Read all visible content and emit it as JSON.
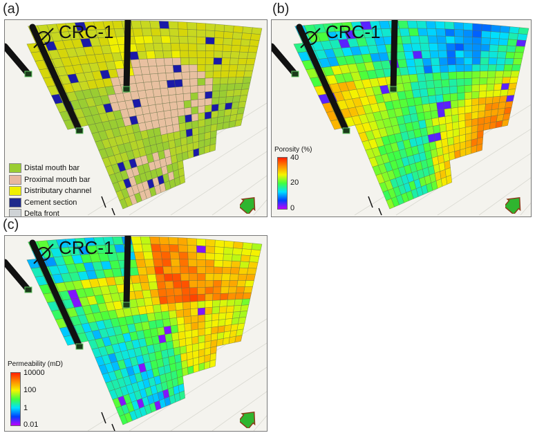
{
  "panels": [
    {
      "letter": "(a)",
      "well": "CRC-1",
      "property": "facies"
    },
    {
      "letter": "(b)",
      "well": "CRC-1",
      "property": "porosity"
    },
    {
      "letter": "(c)",
      "well": "CRC-1",
      "property": "permeability"
    }
  ],
  "facies_legend": [
    {
      "label": "Distal mouth bar",
      "color": "#9acd32"
    },
    {
      "label": "Proximal mouth bar",
      "color": "#e8b8a0"
    },
    {
      "label": "Distributary channel",
      "color": "#f0f000"
    },
    {
      "label": "Cement section",
      "color": "#1e2a8c"
    },
    {
      "label": "Delta front",
      "color": "#cfd3d6"
    }
  ],
  "porosity_bar": {
    "title": "Porosity (%)",
    "ticks": [
      "40",
      "20",
      "0"
    ]
  },
  "permeability_bar": {
    "title": "Permeability (mD)",
    "ticks": [
      "10000",
      "100",
      "1",
      "0.01"
    ]
  },
  "colors": {
    "background": "#f4f3ee",
    "north_arrow": "#2fb52f"
  }
}
